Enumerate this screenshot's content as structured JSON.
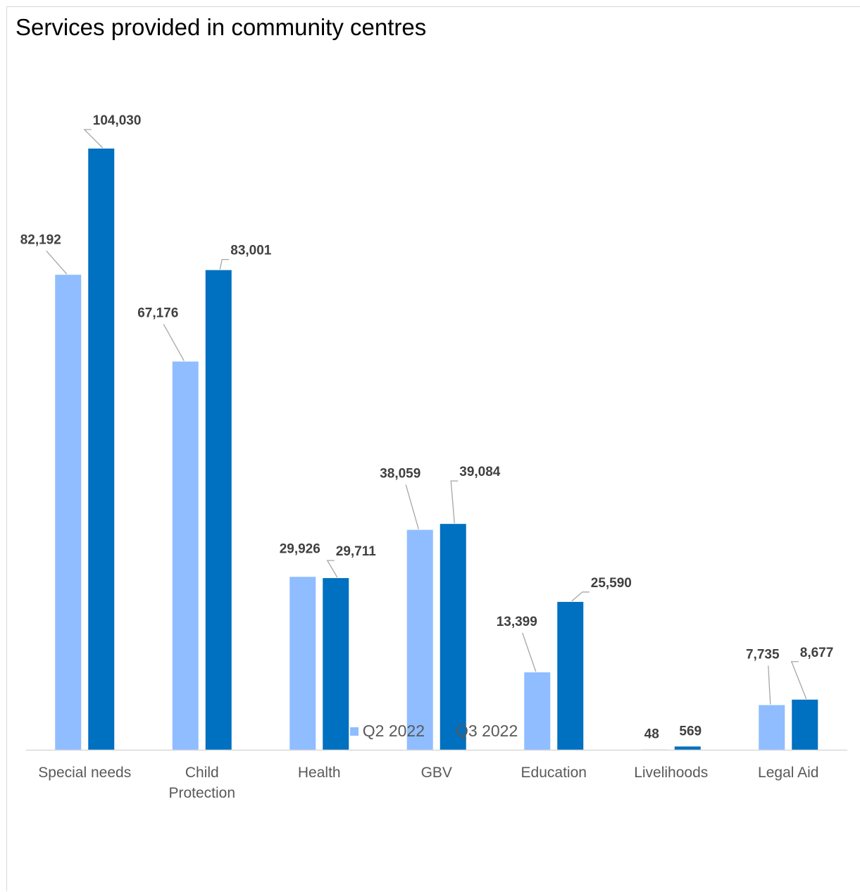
{
  "colors": {
    "q2": "#8fbdff",
    "q3": "#0070c0",
    "axis": "#d9d9d9",
    "label": "#404040",
    "category": "#595959"
  },
  "chart_data": {
    "type": "bar",
    "title": "Services provided in community centres",
    "categories": [
      "Special needs",
      "Child Protection",
      "Health",
      "GBV",
      "Education",
      "Livelihoods",
      "Legal Aid"
    ],
    "category_lines": [
      [
        "Special needs"
      ],
      [
        "Child",
        "Protection"
      ],
      [
        "Health"
      ],
      [
        "GBV"
      ],
      [
        "Education"
      ],
      [
        "Livelihoods"
      ],
      [
        "Legal Aid"
      ]
    ],
    "series": [
      {
        "name": "Q2 2022",
        "values": [
          82192,
          67176,
          29926,
          38059,
          13399,
          48,
          7735
        ],
        "labels": [
          "82,192",
          "67,176",
          "29,926",
          "38,059",
          "13,399",
          "48",
          "7,735"
        ]
      },
      {
        "name": "Q3 2022",
        "values": [
          104030,
          83001,
          29711,
          39084,
          25590,
          569,
          8677
        ],
        "labels": [
          "104,030",
          "83,001",
          "29,711",
          "39,084",
          "25,590",
          "569",
          "8,677"
        ]
      }
    ],
    "ylim": [
      0,
      104030
    ],
    "gridlines": false,
    "legend_position": "bottom"
  }
}
